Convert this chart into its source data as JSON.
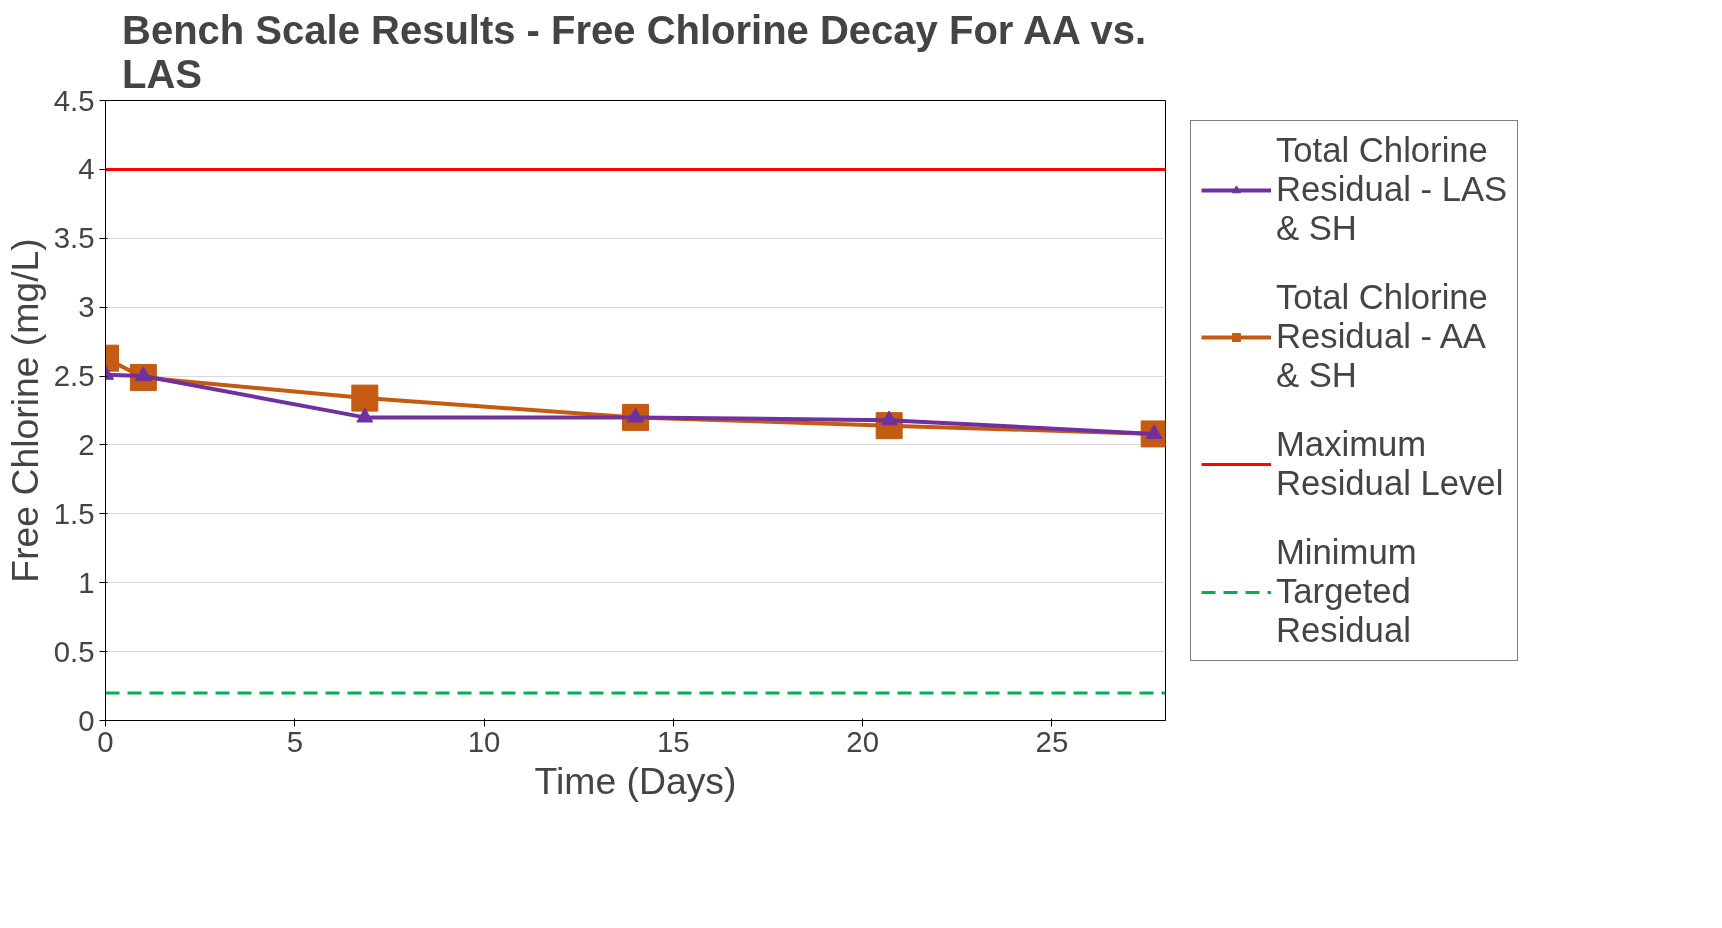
{
  "chart_data": {
    "type": "line",
    "title": "Bench Scale Results - Free Chlorine Decay For AA vs. LAS",
    "xlabel": "Time (Days)",
    "ylabel": "Free Chlorine (mg/L)",
    "xlim": [
      0,
      28
    ],
    "xticks": [
      0,
      5,
      10,
      15,
      20,
      25
    ],
    "ylim": [
      0,
      4.5
    ],
    "yticks": [
      0,
      0.5,
      1,
      1.5,
      2,
      2.5,
      3,
      3.5,
      4,
      4.5
    ],
    "grid": "y",
    "legend": "right",
    "line_style": "solid",
    "series": [
      {
        "name": "Total Chlorine Residual - LAS & SH",
        "color": "#7030a0",
        "marker": "triangle",
        "x": [
          0,
          1,
          6.85,
          14,
          20.7,
          27.7
        ],
        "values": [
          2.51,
          2.5,
          2.2,
          2.2,
          2.18,
          2.08
        ]
      },
      {
        "name": "Total Chlorine Residual - AA & SH",
        "color": "#c55a11",
        "marker": "square",
        "x": [
          0,
          1,
          6.85,
          14,
          20.7,
          27.7
        ],
        "values": [
          2.63,
          2.49,
          2.34,
          2.2,
          2.14,
          2.08
        ]
      }
    ],
    "ref_lines": [
      {
        "axis": "y",
        "value": 4,
        "label": "Maximum Residual Level",
        "color": "#ff0000",
        "line_style": "solid"
      },
      {
        "axis": "y",
        "value": 0.2,
        "label": "Minimum Targeted Residual",
        "color": "#00b050",
        "line_style": "dashed"
      }
    ]
  }
}
